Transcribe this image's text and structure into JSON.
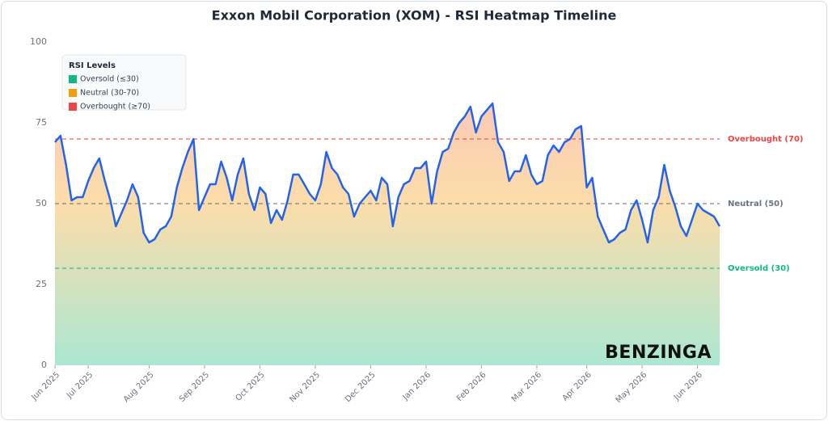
{
  "chart_data": {
    "type": "line",
    "title": "Exxon Mobil Corporation (XOM) - RSI Heatmap Timeline",
    "color": "#2563eb",
    "categories": [
      "Jun 2025",
      null,
      null,
      null,
      null,
      null,
      "Jul 2025",
      null,
      null,
      null,
      null,
      null,
      null,
      null,
      null,
      null,
      null,
      "Aug 2025",
      null,
      null,
      null,
      null,
      null,
      null,
      null,
      null,
      null,
      "Sep 2025",
      null,
      null,
      null,
      null,
      null,
      null,
      null,
      null,
      null,
      "Oct 2025",
      null,
      null,
      null,
      null,
      null,
      null,
      null,
      null,
      null,
      "Nov 2025",
      null,
      null,
      null,
      null,
      null,
      null,
      null,
      null,
      null,
      "Dec 2025",
      null,
      null,
      null,
      null,
      null,
      null,
      null,
      null,
      null,
      "Jan 2026",
      null,
      null,
      null,
      null,
      null,
      null,
      null,
      null,
      null,
      "Feb 2026",
      null,
      null,
      null,
      null,
      null,
      null,
      null,
      null,
      null,
      "Mar 2026",
      null,
      null,
      null,
      null,
      null,
      null,
      null,
      null,
      "Apr 2026",
      null,
      null,
      null,
      null,
      null,
      null,
      null,
      null,
      null,
      "May 2026",
      null,
      null,
      null,
      null,
      null,
      null,
      null,
      null,
      null,
      "Jun 2026",
      null,
      null,
      null,
      null
    ],
    "values": [
      69,
      71,
      62,
      51,
      52,
      52,
      57,
      61,
      64,
      57,
      51,
      43,
      47,
      51,
      56,
      52,
      41,
      38,
      39,
      42,
      43,
      46,
      55,
      61,
      66,
      70,
      48,
      52,
      56,
      56,
      63,
      58,
      51,
      59,
      64,
      53,
      48,
      55,
      53,
      44,
      48,
      45,
      51,
      59,
      59,
      56,
      53,
      51,
      56,
      66,
      61,
      59,
      55,
      53,
      46,
      50,
      52,
      54,
      51,
      58,
      56,
      43,
      52,
      56,
      57,
      61,
      61,
      63,
      50,
      60,
      66,
      67,
      72,
      75,
      77,
      80,
      72,
      77,
      79,
      81,
      69,
      66,
      57,
      60,
      60,
      65,
      59,
      56,
      57,
      65,
      68,
      66,
      69,
      70,
      73,
      74,
      55,
      58,
      46,
      42,
      38,
      39,
      41,
      42,
      48,
      51,
      45,
      38,
      48,
      52,
      62,
      54,
      49,
      43,
      40,
      45,
      50,
      48,
      47,
      46,
      43
    ],
    "ylim": [
      0,
      100
    ],
    "yticks": [
      0,
      25,
      50,
      75,
      100
    ],
    "reference_lines": [
      {
        "value": 70,
        "label": "Overbought (70)",
        "color": "#ef4444"
      },
      {
        "value": 50,
        "label": "Neutral (50)",
        "color": "#6b7280"
      },
      {
        "value": 30,
        "label": "Oversold (30)",
        "color": "#10b981"
      }
    ],
    "legend": {
      "title": "RSI Levels",
      "items": [
        {
          "label": "Oversold (≤30)",
          "color": "#10b981"
        },
        {
          "label": "Neutral (30-70)",
          "color": "#f59e0b"
        },
        {
          "label": "Overbought (≥70)",
          "color": "#ef4444"
        }
      ]
    },
    "watermark": "BENZINGA"
  }
}
